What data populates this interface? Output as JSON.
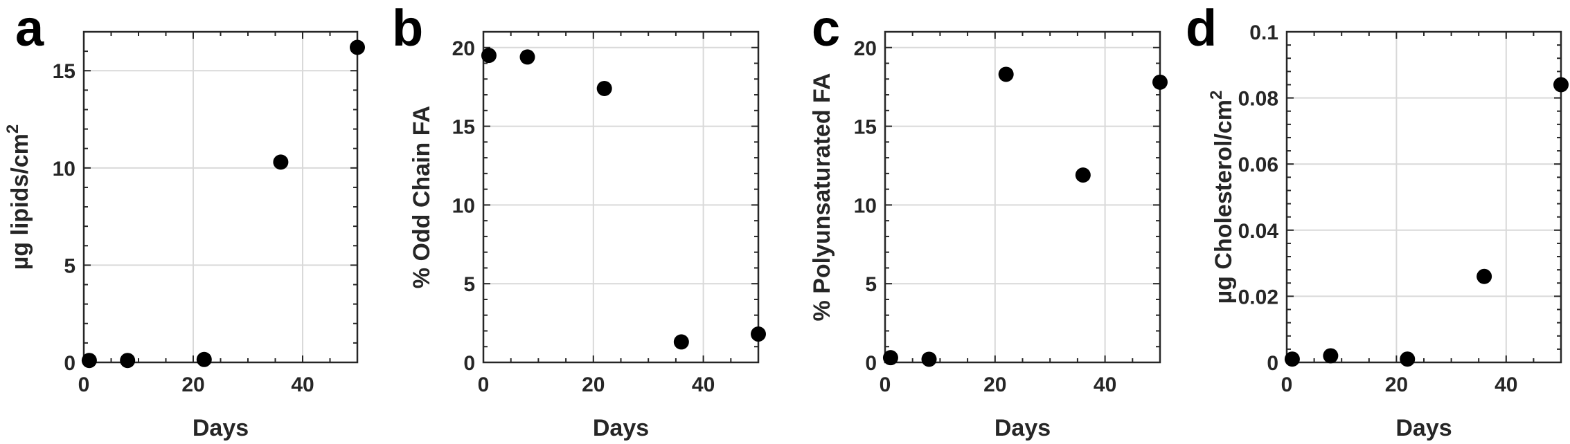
{
  "chart_data": [
    {
      "panel_letter": "a",
      "type": "scatter",
      "xlabel": "Days",
      "ylabel": "µg lipids/cm",
      "ylabel_superscript": "2",
      "xlim": [
        0,
        50
      ],
      "ylim": [
        0,
        17
      ],
      "xticks": [
        0,
        20,
        40
      ],
      "yticks": [
        0,
        5,
        10,
        15
      ],
      "ytick_labels": [
        "0",
        "5",
        "10",
        "15"
      ],
      "grid": true,
      "x": [
        1,
        8,
        22,
        36,
        50
      ],
      "y": [
        0.1,
        0.1,
        0.15,
        10.3,
        16.2
      ]
    },
    {
      "panel_letter": "b",
      "type": "scatter",
      "xlabel": "Days",
      "ylabel": "% Odd Chain FA",
      "ylabel_superscript": "",
      "xlim": [
        0,
        50
      ],
      "ylim": [
        0,
        21
      ],
      "xticks": [
        0,
        20,
        40
      ],
      "yticks": [
        0,
        5,
        10,
        15,
        20
      ],
      "ytick_labels": [
        "0",
        "5",
        "10",
        "15",
        "20"
      ],
      "grid": true,
      "x": [
        1,
        8,
        22,
        36,
        50
      ],
      "y": [
        19.5,
        19.4,
        17.4,
        1.3,
        1.8
      ]
    },
    {
      "panel_letter": "c",
      "type": "scatter",
      "xlabel": "Days",
      "ylabel": "% Polyunsaturated FA",
      "ylabel_superscript": "",
      "xlim": [
        0,
        50
      ],
      "ylim": [
        0,
        21
      ],
      "xticks": [
        0,
        20,
        40
      ],
      "yticks": [
        0,
        5,
        10,
        15,
        20
      ],
      "ytick_labels": [
        "0",
        "5",
        "10",
        "15",
        "20"
      ],
      "grid": true,
      "x": [
        1,
        8,
        22,
        36,
        50
      ],
      "y": [
        0.3,
        0.2,
        18.3,
        11.9,
        17.8
      ]
    },
    {
      "panel_letter": "d",
      "type": "scatter",
      "xlabel": "Days",
      "ylabel": "µg Cholesterol/cm",
      "ylabel_superscript": "2",
      "xlim": [
        0,
        50
      ],
      "ylim": [
        0,
        0.1
      ],
      "xticks": [
        0,
        20,
        40
      ],
      "yticks": [
        0,
        0.02,
        0.04,
        0.06,
        0.08,
        0.1
      ],
      "ytick_labels": [
        "0",
        "0.02",
        "0.04",
        "0.06",
        "0.08",
        "0.1"
      ],
      "grid": true,
      "x": [
        1,
        8,
        22,
        36,
        50
      ],
      "y": [
        0.001,
        0.002,
        0.001,
        0.026,
        0.084
      ]
    }
  ],
  "colors": {
    "marker": "#000000",
    "grid": "#d9d9d9",
    "axis": "#262626",
    "text": "#262626"
  }
}
